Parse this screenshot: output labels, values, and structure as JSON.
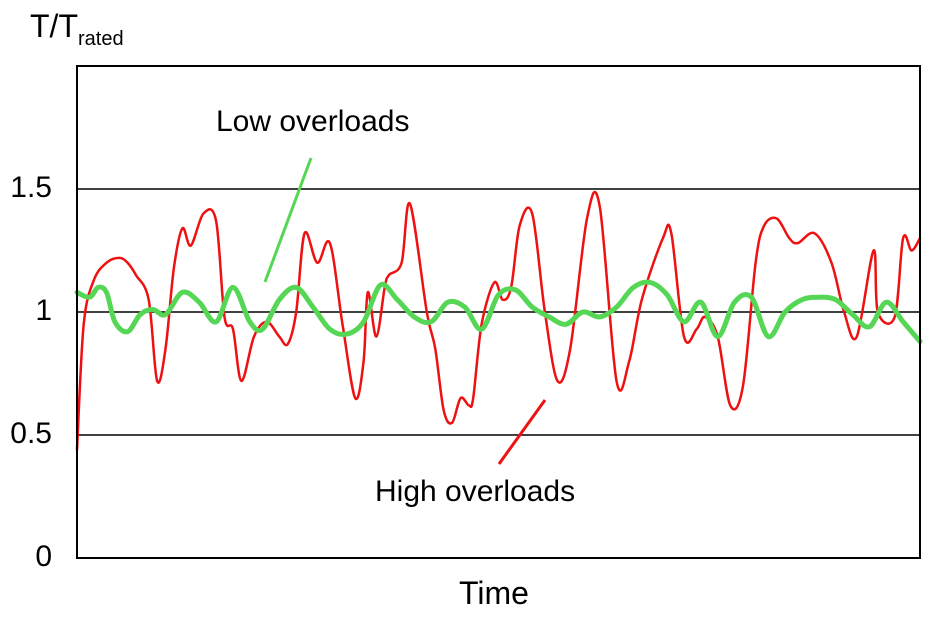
{
  "chart_data": {
    "type": "line",
    "ylabel": {
      "main": "T/T",
      "sub": "rated"
    },
    "xlabel": "Time",
    "ylim": [
      0,
      2
    ],
    "yticks": [
      {
        "value": 0,
        "label": "0"
      },
      {
        "value": 0.5,
        "label": "0.5"
      },
      {
        "value": 1,
        "label": "1"
      },
      {
        "value": 1.5,
        "label": "1.5"
      }
    ],
    "gridlines": [
      0.5,
      1,
      1.5
    ],
    "xlim": [
      0,
      100
    ],
    "series": [
      {
        "color": "#ee1111",
        "x": [
          0,
          0.8,
          2,
          3.5,
          5,
          6,
          7,
          8.5,
          9.5,
          10.5,
          11.5,
          12.5,
          13.5,
          15,
          16.5,
          17.5,
          18.5,
          19.5,
          21,
          22.5,
          24,
          25,
          26,
          27,
          28.5,
          30,
          31.5,
          33,
          34,
          34.5,
          35.5,
          36.5,
          37,
          38.5,
          39.5,
          41.5,
          42.5,
          43.5,
          44.5,
          45.5,
          46.5,
          47,
          48,
          49.5,
          50.5,
          51.5,
          52.5,
          54,
          55.5,
          57,
          58.5,
          60.5,
          62,
          64,
          65.5,
          67,
          69.5,
          70.5,
          72,
          73.5,
          74.5,
          76,
          77.5,
          79,
          80.5,
          81.5,
          83,
          84.5,
          85.5,
          87.5,
          89.5,
          91,
          92.5,
          94.5,
          95,
          97,
          98,
          99,
          100
        ],
        "values": [
          0.44,
          0.95,
          1.13,
          1.2,
          1.22,
          1.2,
          1.15,
          1.05,
          0.72,
          0.85,
          1.18,
          1.34,
          1.27,
          1.4,
          1.37,
          0.98,
          0.93,
          0.72,
          0.9,
          0.96,
          0.9,
          0.87,
          1.0,
          1.32,
          1.2,
          1.28,
          0.95,
          0.65,
          0.8,
          1.08,
          0.9,
          1.1,
          1.15,
          1.2,
          1.44,
          1.0,
          0.85,
          0.6,
          0.55,
          0.65,
          0.62,
          0.65,
          0.95,
          1.12,
          1.05,
          1.1,
          1.35,
          1.4,
          1.0,
          0.72,
          0.85,
          1.38,
          1.43,
          0.72,
          0.8,
          1.05,
          1.3,
          1.32,
          0.9,
          0.93,
          0.98,
          0.9,
          0.62,
          0.7,
          1.2,
          1.35,
          1.38,
          1.3,
          1.28,
          1.32,
          1.2,
          1.0,
          0.9,
          1.25,
          1.0,
          0.98,
          1.3,
          1.25,
          1.3
        ]
      },
      {
        "color": "#55d655",
        "x": [
          0,
          1.5,
          2.5,
          3.5,
          4.5,
          6,
          7.5,
          9,
          10.5,
          12.5,
          14.5,
          16.5,
          18.5,
          20.5,
          22,
          24,
          26,
          28,
          30,
          32,
          34,
          36,
          38,
          40,
          42,
          44,
          46,
          48,
          50,
          52,
          54,
          56,
          58,
          60,
          62,
          64,
          66,
          68,
          70,
          72,
          74,
          76,
          78,
          80,
          82,
          84,
          86,
          88,
          90,
          92,
          94,
          96,
          98,
          100
        ],
        "values": [
          1.08,
          1.06,
          1.1,
          1.08,
          0.96,
          0.92,
          0.99,
          1.01,
          0.99,
          1.08,
          1.04,
          0.96,
          1.1,
          0.96,
          0.93,
          1.05,
          1.1,
          1.02,
          0.93,
          0.91,
          0.96,
          1.11,
          1.05,
          0.98,
          0.96,
          1.04,
          1.02,
          0.93,
          1.07,
          1.09,
          1.02,
          0.98,
          0.95,
          1.0,
          0.98,
          1.02,
          1.1,
          1.12,
          1.07,
          0.96,
          1.04,
          0.9,
          1.04,
          1.06,
          0.9,
          1.0,
          1.05,
          1.06,
          1.05,
          0.99,
          0.94,
          1.04,
          0.96,
          0.88
        ]
      }
    ],
    "annotations": [
      {
        "text": "Low overloads",
        "color": "#55d655"
      },
      {
        "text": "High overloads",
        "color": "#ee1111"
      }
    ]
  }
}
